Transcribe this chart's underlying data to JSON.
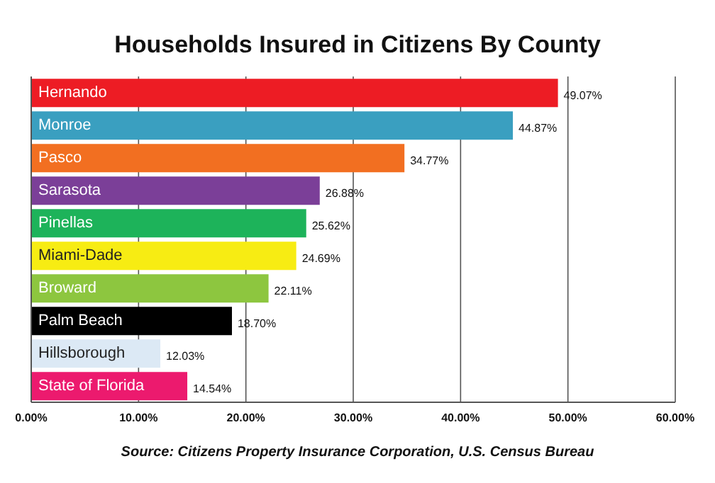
{
  "chart_data": {
    "type": "bar",
    "orientation": "horizontal",
    "title": "Households Insured in Citizens By County",
    "categories": [
      "Hernando",
      "Monroe",
      "Pasco",
      "Sarasota",
      "Pinellas",
      "Miami-Dade",
      "Broward",
      "Palm Beach",
      "Hillsborough",
      "State of Florida"
    ],
    "values": [
      49.07,
      44.87,
      34.77,
      26.88,
      25.62,
      24.69,
      22.11,
      18.7,
      12.03,
      14.54
    ],
    "value_labels": [
      "49.07%",
      "44.87%",
      "34.77%",
      "26.88%",
      "25.62%",
      "24.69%",
      "22.11%",
      "18.70%",
      "12.03%",
      "14.54%"
    ],
    "colors": [
      "#ed1c24",
      "#3a9fc0",
      "#f26f21",
      "#7b3f98",
      "#1db35a",
      "#f7ec13",
      "#8dc63f",
      "#000000",
      "#dce9f5",
      "#ec1a6e"
    ],
    "xlim": [
      0,
      60
    ],
    "xticks": [
      {
        "value": 0,
        "label": "0.00%"
      },
      {
        "value": 10,
        "label": "10.00%"
      },
      {
        "value": 20,
        "label": "20.00%"
      },
      {
        "value": 30,
        "label": "30.00%"
      },
      {
        "value": 40,
        "label": "40.00%"
      },
      {
        "value": 50,
        "label": "50.00%"
      },
      {
        "value": 60,
        "label": "60.00%"
      }
    ],
    "grid": "x",
    "annotations": [
      "Source: Citizens Property Insurance Corporation, U.S. Census Bureau"
    ]
  }
}
